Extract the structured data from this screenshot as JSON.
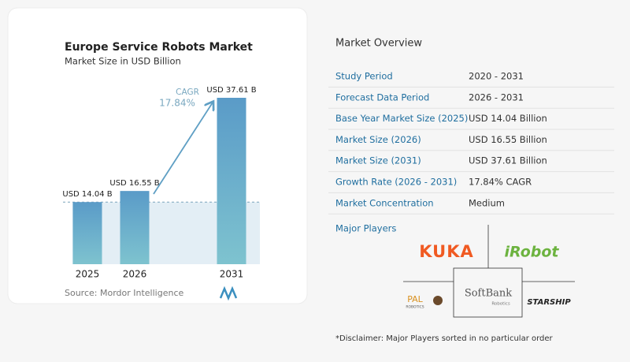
{
  "chart_data": {
    "type": "bar",
    "title": "Europe Service Robots Market",
    "subtitle": "Market Size in USD Billion",
    "categories": [
      "2025",
      "2026",
      "2031"
    ],
    "values": [
      14.04,
      16.55,
      37.61
    ],
    "value_labels": [
      "USD 14.04 B",
      "USD 16.55 B",
      "USD 37.61 B"
    ],
    "annotation": {
      "label": "CAGR",
      "value": "17.84%"
    },
    "source": "Source: Mordor Intelligence"
  },
  "overview": {
    "title": "Market Overview",
    "rows": [
      [
        "Study Period",
        "2020 - 2031"
      ],
      [
        "Forecast Data Period",
        "2026 - 2031"
      ],
      [
        "Base Year Market Size (2025)",
        "USD 14.04 Billion"
      ],
      [
        "Market Size (2026)",
        "USD 16.55 Billion"
      ],
      [
        "Market Size (2031)",
        "USD 37.61 Billion"
      ],
      [
        "Growth Rate (2026 - 2031)",
        "17.84% CAGR"
      ],
      [
        "Market Concentration",
        "Medium"
      ]
    ],
    "major_players": {
      "title": "Major Players",
      "logos": [
        "KUKA",
        "iRobot",
        "SoftBank",
        "Robotics",
        "PAL",
        "ROBOTICS",
        "STARSHIP"
      ]
    },
    "disclaimer": "*Disclaimer: Major Players sorted in no particular order"
  }
}
